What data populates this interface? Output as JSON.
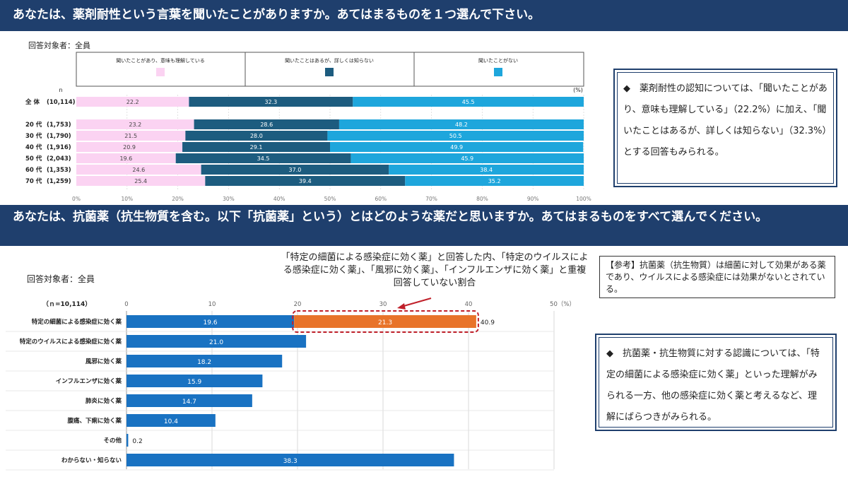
{
  "q1": {
    "title": "あなたは、薬剤耐性という言葉を聞いたことがありますか。あてはまるものを１つ選んで下さい。",
    "respondents": "回答対象者：全員",
    "n_label": "n",
    "pct_label": "(%)",
    "summary": "◆　薬剤耐性の認知については、「聞いたことがあり、意味も理解している」（22.2%）に加え、「聞いたことはあるが、詳しくは知らない」（32.3%）とする回答もみられる。"
  },
  "q2": {
    "title": "あなたは、抗菌薬（抗生物質を含む。以下「抗菌薬」という）とはどのような薬だと思いますか。あてはまるものをすべて選んでください。",
    "respondents": "回答対象者：全員",
    "n_label": "（ｎ=10,114）",
    "annotation": "「特定の細菌による感染症に効く薬」と回答した内、「特定のウイルスによる感染症に効く薬」、「風邪に効く薬」、「インフルエンザに効く薬」と重複回答していない割合",
    "reference": "【参考】抗菌薬（抗生物質）は細菌に対して効果がある薬であり、ウイルスによる感染症には効果がないとされている。",
    "summary": "◆　抗菌薬・抗生物質に対する認識については、「特定の細菌による感染症に効く薬」といった理解がみられる一方、他の感染症に効く薬と考えるなど、理解にばらつきがみられる。"
  },
  "colors": {
    "pink": "#fbd3f2",
    "navy": "#1d5c7f",
    "sky": "#1ea6dc",
    "blue": "#1972c2",
    "orange": "#e8732a",
    "red": "#c0202a",
    "header": "#1f3f6d"
  },
  "chart_data": [
    {
      "type": "bar",
      "orientation": "horizontal-stacked-100",
      "legend": [
        "聞いたことがあり、意味も理解している",
        "聞いたことはあるが、詳しくは知らない",
        "聞いたことがない"
      ],
      "legend_placement": "top",
      "categories": [
        "全 体",
        "20 代",
        "30 代",
        "40 代",
        "50 代",
        "60 代",
        "70 代"
      ],
      "n": [
        "(10,114)",
        "(1,753)",
        "(1,790)",
        "(1,916)",
        "(2,043)",
        "(1,353)",
        "(1,259)"
      ],
      "series": [
        {
          "name": "聞いたことがあり、意味も理解している",
          "values": [
            22.2,
            23.2,
            21.5,
            20.9,
            19.6,
            24.6,
            25.4
          ]
        },
        {
          "name": "聞いたことはあるが、詳しくは知らない",
          "values": [
            32.3,
            28.6,
            28.0,
            29.1,
            34.5,
            37.0,
            39.4
          ]
        },
        {
          "name": "聞いたことがない",
          "values": [
            45.5,
            48.2,
            50.5,
            49.9,
            45.9,
            38.4,
            35.2
          ]
        }
      ],
      "xticks": [
        "0%",
        "10%",
        "20%",
        "30%",
        "40%",
        "50%",
        "60%",
        "70%",
        "80%",
        "90%",
        "100%"
      ],
      "xlim": [
        0,
        100
      ]
    },
    {
      "type": "bar",
      "orientation": "horizontal",
      "categories": [
        "特定の細菌による感染症に効く薬",
        "特定のウイルスによる感染症に効く薬",
        "風邪に効く薬",
        "インフルエンザに効く薬",
        "肺炎に効く薬",
        "腹痛、下痢に効く薬",
        "その他",
        "わからない・知らない"
      ],
      "values": [
        19.6,
        21.0,
        18.2,
        15.9,
        14.7,
        10.4,
        0.2,
        38.3
      ],
      "highlight": {
        "category_index": 0,
        "value": 21.3,
        "total_label": "40.9"
      },
      "xticks": [
        "0",
        "10",
        "20",
        "30",
        "40",
        "50（%）"
      ],
      "xlim": [
        0,
        50
      ]
    }
  ]
}
